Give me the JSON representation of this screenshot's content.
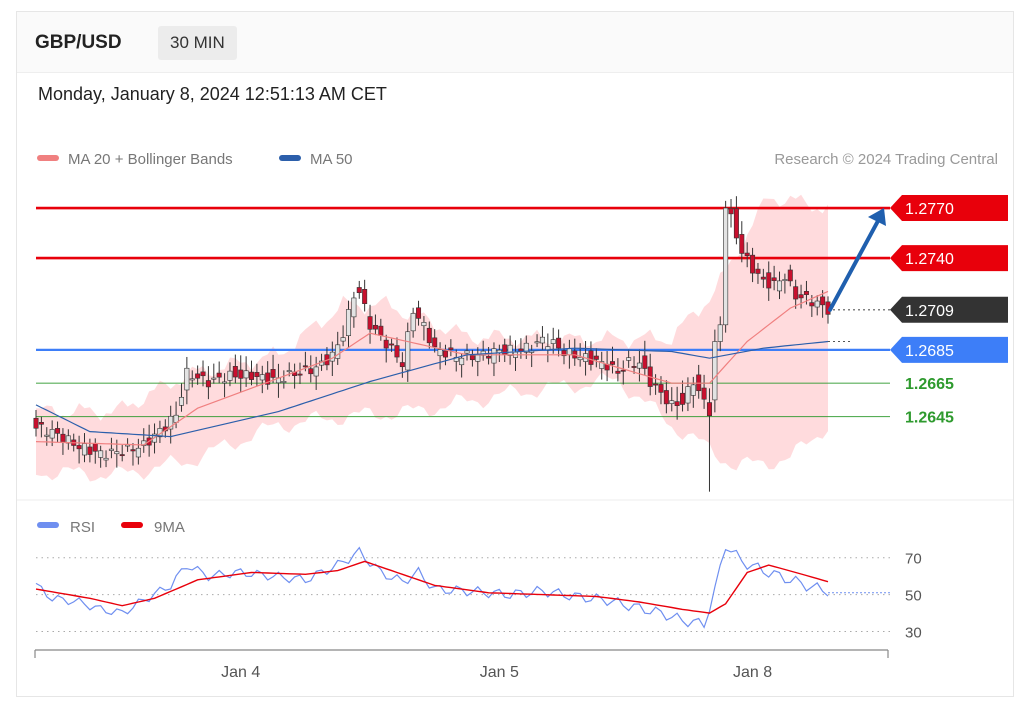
{
  "header": {
    "symbol": "GBP/USD",
    "timeframe": "30 MIN"
  },
  "datetime": "Monday, January 8, 2024 12:51:13 AM CET",
  "colors": {
    "resistance": "#e8000b",
    "support": "#3d7ef8",
    "minor_support": "#2e9a2e",
    "bollinger": "#ffd2d5",
    "ma20": "#f08080",
    "ma50": "#2c5fab",
    "candle_up": "#e3e3e3",
    "candle_down": "#c8102e",
    "rsi": "#6f8ff0",
    "rsi_ma": "#e8000b",
    "current": "#333333"
  },
  "chart_data": [
    {
      "type": "candlestick",
      "title": "GBP/USD",
      "legend": [
        {
          "label": "MA 20 + Bollinger Bands",
          "color": "#f08080"
        },
        {
          "label": "MA 50",
          "color": "#2c5fab"
        }
      ],
      "credit": "Research © 2024 Trading Central",
      "x_ticks": [
        "Jan 4",
        "Jan 5",
        "Jan 8"
      ],
      "ylim": [
        1.2595,
        1.2785
      ],
      "levels": [
        {
          "label": "1.2770",
          "value": 1.277,
          "kind": "resistance"
        },
        {
          "label": "1.2740",
          "value": 1.274,
          "kind": "resistance"
        },
        {
          "label": "1.2709",
          "value": 1.2709,
          "kind": "current"
        },
        {
          "label": "1.2685",
          "value": 1.2685,
          "kind": "support"
        },
        {
          "label": "1.2665",
          "value": 1.2665,
          "kind": "minor_support"
        },
        {
          "label": "1.2645",
          "value": 1.2645,
          "kind": "minor_support"
        }
      ],
      "forecast": {
        "from": 1.2709,
        "to": 1.277
      },
      "close_path": [
        [
          0,
          1.2638
        ],
        [
          4,
          1.2633
        ],
        [
          8,
          1.2626
        ],
        [
          12,
          1.2622
        ],
        [
          16,
          1.2624
        ],
        [
          20,
          1.2628
        ],
        [
          24,
          1.264
        ],
        [
          26,
          1.2647
        ],
        [
          28,
          1.2672
        ],
        [
          32,
          1.2667
        ],
        [
          36,
          1.2671
        ],
        [
          40,
          1.2671
        ],
        [
          44,
          1.2668
        ],
        [
          48,
          1.2672
        ],
        [
          52,
          1.2675
        ],
        [
          55,
          1.2682
        ],
        [
          57,
          1.2695
        ],
        [
          59,
          1.2718
        ],
        [
          60,
          1.272
        ],
        [
          62,
          1.27
        ],
        [
          64,
          1.2692
        ],
        [
          66,
          1.2685
        ],
        [
          68,
          1.2676
        ],
        [
          70,
          1.2708
        ],
        [
          72,
          1.2698
        ],
        [
          74,
          1.2684
        ],
        [
          78,
          1.268
        ],
        [
          82,
          1.268
        ],
        [
          86,
          1.2683
        ],
        [
          90,
          1.2684
        ],
        [
          92,
          1.2686
        ],
        [
          94,
          1.269
        ],
        [
          96,
          1.2688
        ],
        [
          98,
          1.2683
        ],
        [
          102,
          1.268
        ],
        [
          106,
          1.2676
        ],
        [
          108,
          1.2672
        ],
        [
          110,
          1.2678
        ],
        [
          112,
          1.2678
        ],
        [
          114,
          1.2667
        ],
        [
          116,
          1.266
        ],
        [
          118,
          1.2653
        ],
        [
          120,
          1.2655
        ],
        [
          122,
          1.2668
        ],
        [
          124,
          1.2655
        ],
        [
          125,
          1.265
        ],
        [
          126,
          1.269
        ],
        [
          127,
          1.2698
        ],
        [
          128,
          1.277
        ],
        [
          129,
          1.2765
        ],
        [
          131,
          1.2745
        ],
        [
          133,
          1.2735
        ],
        [
          135,
          1.2727
        ],
        [
          137,
          1.2725
        ],
        [
          139,
          1.273
        ],
        [
          141,
          1.2718
        ],
        [
          143,
          1.2716
        ],
        [
          145,
          1.2713
        ],
        [
          147,
          1.2709
        ]
      ],
      "ma20_path": [
        [
          0,
          1.263
        ],
        [
          20,
          1.2628
        ],
        [
          30,
          1.265
        ],
        [
          45,
          1.2668
        ],
        [
          55,
          1.268
        ],
        [
          62,
          1.2695
        ],
        [
          80,
          1.2682
        ],
        [
          100,
          1.2682
        ],
        [
          118,
          1.2665
        ],
        [
          125,
          1.2665
        ],
        [
          132,
          1.269
        ],
        [
          140,
          1.271
        ],
        [
          147,
          1.272
        ]
      ],
      "ma50_path": [
        [
          0,
          1.2652
        ],
        [
          10,
          1.2636
        ],
        [
          25,
          1.2633
        ],
        [
          45,
          1.2648
        ],
        [
          62,
          1.2666
        ],
        [
          80,
          1.2682
        ],
        [
          100,
          1.2686
        ],
        [
          118,
          1.2684
        ],
        [
          125,
          1.268
        ],
        [
          135,
          1.2686
        ],
        [
          147,
          1.269
        ]
      ],
      "bb_upper_path": [
        [
          0,
          1.2648
        ],
        [
          15,
          1.2648
        ],
        [
          28,
          1.267
        ],
        [
          45,
          1.2682
        ],
        [
          57,
          1.2712
        ],
        [
          65,
          1.2712
        ],
        [
          80,
          1.2693
        ],
        [
          100,
          1.2691
        ],
        [
          118,
          1.2692
        ],
        [
          126,
          1.272
        ],
        [
          136,
          1.2777
        ],
        [
          147,
          1.277
        ]
      ],
      "bb_lower_path": [
        [
          0,
          1.2612
        ],
        [
          15,
          1.261
        ],
        [
          28,
          1.2618
        ],
        [
          45,
          1.264
        ],
        [
          57,
          1.2645
        ],
        [
          70,
          1.2648
        ],
        [
          90,
          1.266
        ],
        [
          108,
          1.2667
        ],
        [
          118,
          1.264
        ],
        [
          130,
          1.2615
        ],
        [
          140,
          1.262
        ],
        [
          147,
          1.264
        ]
      ]
    },
    {
      "type": "line",
      "legend": [
        {
          "label": "RSI",
          "color": "#6f8ff0"
        },
        {
          "label": "9MA",
          "color": "#e8000b"
        }
      ],
      "ylim": [
        20,
        85
      ],
      "y_ticks": [
        70,
        50,
        30
      ],
      "rsi_path": [
        [
          0,
          55
        ],
        [
          3,
          48
        ],
        [
          8,
          46
        ],
        [
          12,
          42
        ],
        [
          16,
          40
        ],
        [
          20,
          47
        ],
        [
          25,
          55
        ],
        [
          28,
          66
        ],
        [
          32,
          60
        ],
        [
          38,
          62
        ],
        [
          44,
          60
        ],
        [
          50,
          58
        ],
        [
          56,
          66
        ],
        [
          60,
          73
        ],
        [
          64,
          62
        ],
        [
          68,
          57
        ],
        [
          71,
          62
        ],
        [
          74,
          53
        ],
        [
          80,
          52
        ],
        [
          88,
          50
        ],
        [
          94,
          52
        ],
        [
          100,
          49
        ],
        [
          106,
          47
        ],
        [
          110,
          44
        ],
        [
          116,
          40
        ],
        [
          120,
          36
        ],
        [
          124,
          34
        ],
        [
          126,
          52
        ],
        [
          128,
          77
        ],
        [
          131,
          68
        ],
        [
          135,
          63
        ],
        [
          140,
          58
        ],
        [
          144,
          54
        ],
        [
          147,
          52
        ]
      ],
      "ma_path": [
        [
          0,
          53
        ],
        [
          10,
          48
        ],
        [
          16,
          44
        ],
        [
          22,
          48
        ],
        [
          30,
          58
        ],
        [
          40,
          62
        ],
        [
          50,
          61
        ],
        [
          56,
          63
        ],
        [
          61,
          68
        ],
        [
          68,
          61
        ],
        [
          74,
          55
        ],
        [
          84,
          51
        ],
        [
          94,
          50
        ],
        [
          104,
          49
        ],
        [
          112,
          46
        ],
        [
          120,
          42
        ],
        [
          125,
          40
        ],
        [
          128,
          45
        ],
        [
          132,
          62
        ],
        [
          136,
          66
        ],
        [
          141,
          62
        ],
        [
          147,
          57
        ]
      ]
    }
  ]
}
